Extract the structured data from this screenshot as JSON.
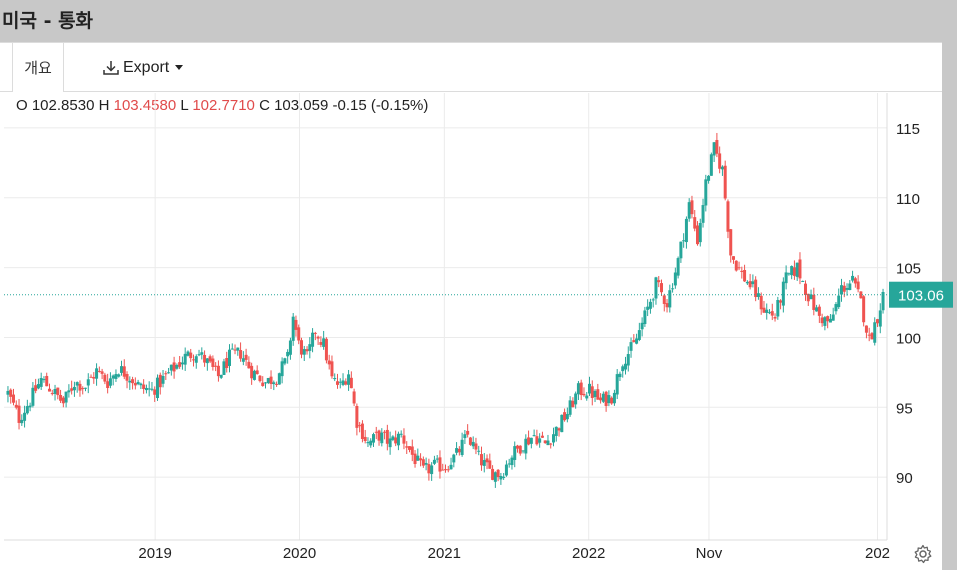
{
  "header": {
    "title": "미국 - 통화"
  },
  "tabs": {
    "overview_label": "개요",
    "export_label": "Export"
  },
  "ohlc": {
    "o_label": "O",
    "o_value": "102.8530",
    "h_label": "H",
    "h_value": "103.4580",
    "l_label": "L",
    "l_value": "102.7710",
    "c_label": "C",
    "c_value": "103.059",
    "change": "-0.15 (-0.15%)"
  },
  "colors": {
    "up": "#26a69a",
    "down": "#ef5350",
    "grid": "#ebebeb",
    "price_line": "#26a69a"
  },
  "icons": {
    "export": "download-icon",
    "settings": "gear-icon"
  },
  "chart_data": {
    "type": "candlestick",
    "title": "",
    "xlabel": "",
    "ylabel": "",
    "ylim": [
      85.5,
      117.5
    ],
    "y_ticks": [
      "115",
      "110",
      "105",
      "100",
      "95",
      "90"
    ],
    "y_tick_values": [
      115,
      110,
      105,
      100,
      95,
      90
    ],
    "x_ticks": [
      "2019",
      "2020",
      "2021",
      "2022",
      "Nov",
      "202"
    ],
    "x_tick_dates": [
      "2019-01-01",
      "2020-01-01",
      "2021-01-01",
      "2022-01-01",
      "2022-11-01",
      "2024-01-01"
    ],
    "x_range": [
      "2017-12-15",
      "2024-01-25"
    ],
    "last_price_label": "103.06",
    "last_price": 103.06,
    "grid": true,
    "series": [
      {
        "values": [
          [
            "2017-12-25",
            96.0
          ],
          [
            "2018-01-22",
            94.2
          ],
          [
            "2018-02-19",
            95.5
          ],
          [
            "2018-03-19",
            97.0
          ],
          [
            "2018-04-16",
            96.2
          ],
          [
            "2018-05-14",
            95.3
          ],
          [
            "2018-06-11",
            96.8
          ],
          [
            "2018-07-09",
            96.5
          ],
          [
            "2018-08-06",
            97.6
          ],
          [
            "2018-09-03",
            96.8
          ],
          [
            "2018-10-01",
            97.8
          ],
          [
            "2018-10-29",
            97.2
          ],
          [
            "2018-11-26",
            96.4
          ],
          [
            "2018-12-24",
            96.2
          ],
          [
            "2019-01-21",
            97.0
          ],
          [
            "2019-02-18",
            97.8
          ],
          [
            "2019-03-18",
            98.6
          ],
          [
            "2019-04-15",
            99.0
          ],
          [
            "2019-05-13",
            98.2
          ],
          [
            "2019-06-10",
            97.2
          ],
          [
            "2019-07-08",
            98.6
          ],
          [
            "2019-08-05",
            98.9
          ],
          [
            "2019-09-02",
            97.6
          ],
          [
            "2019-10-07",
            96.8
          ],
          [
            "2019-11-04",
            97.2
          ],
          [
            "2019-12-02",
            98.5
          ],
          [
            "2019-12-16",
            101.5
          ],
          [
            "2019-12-30",
            99.5
          ],
          [
            "2020-01-20",
            98.5
          ],
          [
            "2020-02-10",
            100.5
          ],
          [
            "2020-03-02",
            99.5
          ],
          [
            "2020-03-23",
            97.0
          ],
          [
            "2020-04-13",
            96.5
          ],
          [
            "2020-05-04",
            97.5
          ],
          [
            "2020-05-25",
            94.0
          ],
          [
            "2020-06-22",
            92.4
          ],
          [
            "2020-07-20",
            93.0
          ],
          [
            "2020-08-17",
            92.5
          ],
          [
            "2020-09-14",
            93.0
          ],
          [
            "2020-10-12",
            91.6
          ],
          [
            "2020-11-09",
            90.4
          ],
          [
            "2020-12-07",
            90.8
          ],
          [
            "2021-01-04",
            90.8
          ],
          [
            "2021-02-01",
            91.6
          ],
          [
            "2021-03-01",
            93.0
          ],
          [
            "2021-03-29",
            91.4
          ],
          [
            "2021-04-26",
            90.4
          ],
          [
            "2021-05-24",
            90.2
          ],
          [
            "2021-06-21",
            91.6
          ],
          [
            "2021-07-19",
            92.4
          ],
          [
            "2021-08-16",
            93.0
          ],
          [
            "2021-09-13",
            92.4
          ],
          [
            "2021-10-11",
            93.4
          ],
          [
            "2021-11-08",
            94.6
          ],
          [
            "2021-12-06",
            96.2
          ],
          [
            "2022-01-03",
            96.2
          ],
          [
            "2022-01-31",
            95.4
          ],
          [
            "2022-02-28",
            95.8
          ],
          [
            "2022-03-28",
            98.4
          ],
          [
            "2022-04-25",
            99.4
          ],
          [
            "2022-05-23",
            101.5
          ],
          [
            "2022-06-20",
            103.8
          ],
          [
            "2022-07-18",
            102.5
          ],
          [
            "2022-08-15",
            105.5
          ],
          [
            "2022-09-12",
            109.5
          ],
          [
            "2022-10-03",
            107.0
          ],
          [
            "2022-10-24",
            111.0
          ],
          [
            "2022-11-14",
            113.5
          ],
          [
            "2022-12-05",
            112.0
          ],
          [
            "2022-12-26",
            106.0
          ],
          [
            "2023-01-23",
            104.5
          ],
          [
            "2023-02-20",
            103.5
          ],
          [
            "2023-03-20",
            102.0
          ],
          [
            "2023-04-17",
            101.5
          ],
          [
            "2023-05-15",
            104.2
          ],
          [
            "2023-06-12",
            105.0
          ],
          [
            "2023-07-10",
            103.0
          ],
          [
            "2023-08-07",
            101.5
          ],
          [
            "2023-09-04",
            101.0
          ],
          [
            "2023-10-02",
            103.5
          ],
          [
            "2023-10-30",
            104.0
          ],
          [
            "2023-11-20",
            102.5
          ],
          [
            "2023-12-11",
            99.8
          ],
          [
            "2024-01-01",
            101.5
          ],
          [
            "2024-01-15",
            103.06
          ]
        ]
      }
    ]
  }
}
